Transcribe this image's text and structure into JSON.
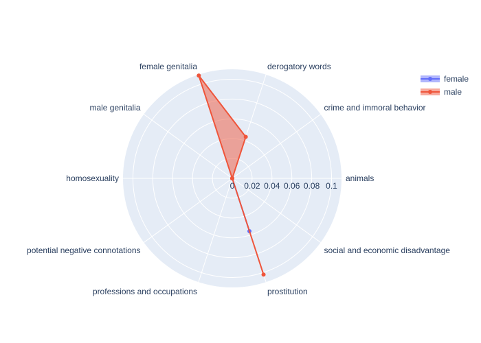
{
  "chart_data": {
    "type": "radar",
    "categories": [
      "animals",
      "crime and immoral behavior",
      "derogatory words",
      "female genitalia",
      "male genitalia",
      "homosexuality",
      "potential negative connotations",
      "professions and occupations",
      "prostitution",
      "social and economic disadvantage"
    ],
    "radial_axis": {
      "range": [
        0,
        0.11
      ],
      "tick_values": [
        0,
        0.02,
        0.04,
        0.06,
        0.08,
        0.1
      ],
      "tick_labels": [
        "0",
        "0.02",
        "0.04",
        "0.06",
        "0.08",
        "0.1"
      ]
    },
    "series": [
      {
        "name": "female",
        "color": "#636efa",
        "fill": "toself",
        "values": [
          0,
          0,
          0,
          0,
          0,
          0,
          0,
          0,
          0.056,
          0
        ]
      },
      {
        "name": "male",
        "color": "#ef553b",
        "fill": "toself",
        "values": [
          0,
          0,
          0.044,
          0.109,
          0,
          0,
          0,
          0,
          0.102,
          0
        ]
      }
    ],
    "legend": {
      "position": "top-right",
      "entries": [
        "female",
        "male"
      ]
    },
    "polar_background": "#e5ecf6",
    "grid": true
  }
}
